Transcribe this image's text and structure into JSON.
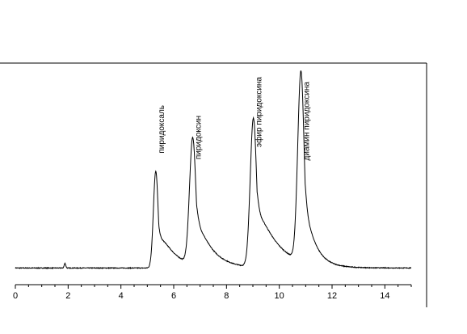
{
  "chart_data": {
    "type": "line",
    "title": "",
    "xlabel": "",
    "ylabel": "",
    "xlim": [
      0,
      15
    ],
    "ylim": [
      0,
      1.12
    ],
    "x_ticks": [
      0,
      2,
      4,
      6,
      8,
      10,
      12,
      14
    ],
    "x_tick_labels": [
      "0",
      "2",
      "4",
      "6",
      "8",
      "10",
      "12",
      "14"
    ],
    "grid": false,
    "legend": "none",
    "line_color": "#000000",
    "baseline": 0.02,
    "noise_level": 0.004,
    "minor_blips": [
      {
        "x": 1.88,
        "height": 0.025
      }
    ],
    "peaks": [
      {
        "x": 5.32,
        "height": 0.52,
        "width_left": 0.09,
        "tail": 0.55,
        "label": "пиридоксаль"
      },
      {
        "x": 6.72,
        "height": 0.68,
        "width_left": 0.12,
        "tail": 0.55,
        "label": "пиридоксин"
      },
      {
        "x": 9.02,
        "height": 0.8,
        "width_left": 0.12,
        "tail": 0.75,
        "label": "эфир пиридоксина"
      },
      {
        "x": 10.82,
        "height": 1.02,
        "width_left": 0.12,
        "tail": 0.35,
        "label": "диамин пиридоксина"
      }
    ],
    "series": [
      {
        "values_desc": "chromatogram signal, sum of four tailed peaks over a flat baseline"
      }
    ]
  }
}
